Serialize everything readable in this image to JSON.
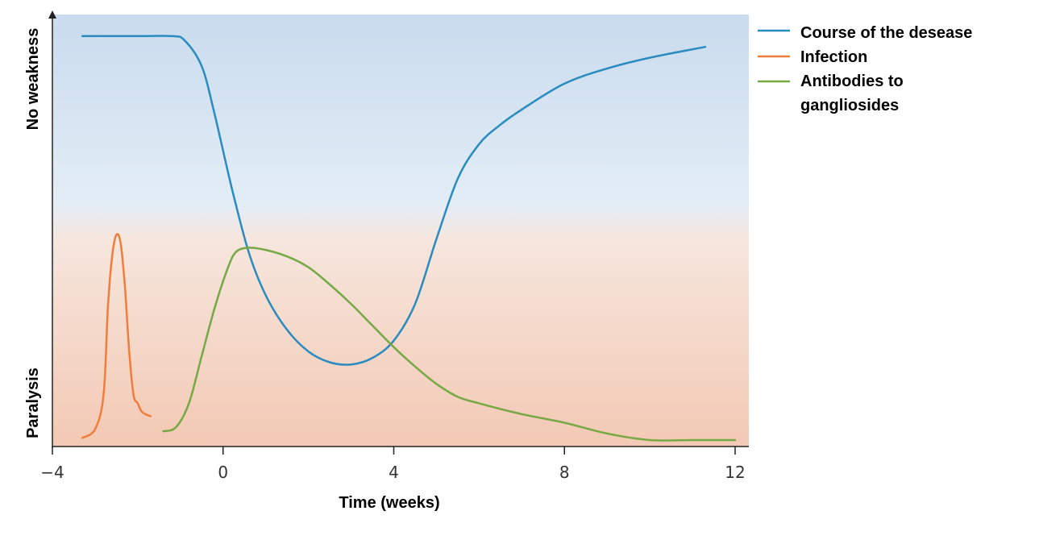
{
  "chart_data": {
    "type": "line",
    "title": "",
    "xlabel": "Time (weeks)",
    "ylabel_top": "No weakness",
    "ylabel_bottom": "Paralysis",
    "xlim": [
      -4,
      12
    ],
    "ylim": [
      0,
      100
    ],
    "x_ticks": [
      -4,
      0,
      4,
      8,
      12
    ],
    "x_tick_labels": [
      "−4",
      "0",
      "4",
      "8",
      "12"
    ],
    "grid": false,
    "legend_position": "top-right",
    "background_gradient": {
      "top": "#c9dbee",
      "middle": "#e3edf6",
      "bottom": "#f3c9b4"
    },
    "series": [
      {
        "name": "Course of the desease",
        "color": "#2a8bbf",
        "x": [
          -3.3,
          -2.0,
          -1.2,
          -0.9,
          -0.5,
          -0.2,
          0.2,
          0.6,
          1.0,
          1.5,
          2.0,
          2.5,
          3.0,
          3.5,
          4.0,
          4.5,
          5.0,
          5.5,
          6.0,
          6.5,
          7.0,
          8.0,
          9.0,
          10.0,
          11.3
        ],
        "y": [
          95,
          95,
          95,
          94,
          88,
          77,
          60,
          45,
          35,
          27,
          22,
          19.5,
          19,
          20.5,
          24.5,
          33,
          48,
          62,
          70,
          74.5,
          78,
          84,
          87.5,
          90,
          92.5
        ]
      },
      {
        "name": "Infection",
        "color": "#f07d3c",
        "x": [
          -3.3,
          -3.0,
          -2.8,
          -2.7,
          -2.6,
          -2.5,
          -2.4,
          -2.3,
          -2.2,
          -2.1,
          -2.0,
          -1.9,
          -1.7
        ],
        "y": [
          2,
          4,
          12,
          32,
          44,
          49,
          47,
          37,
          22,
          12,
          10,
          8,
          7
        ]
      },
      {
        "name": "Antibodies to gangliosides",
        "color": "#76a845",
        "x": [
          -1.4,
          -1.1,
          -0.8,
          -0.5,
          -0.2,
          0.1,
          0.3,
          0.6,
          1.0,
          1.5,
          2.0,
          2.5,
          3.0,
          3.5,
          4.0,
          4.5,
          5.0,
          5.5,
          6.0,
          7.0,
          8.0,
          9.0,
          10.0,
          11.0,
          12.0
        ],
        "y": [
          3.5,
          4.5,
          10,
          21,
          32,
          41,
          45,
          46,
          45.5,
          44,
          41.5,
          37.5,
          33,
          28,
          23,
          18.5,
          14.5,
          11.5,
          10,
          7.5,
          5.5,
          3,
          1.5,
          1.5,
          1.5
        ]
      }
    ]
  }
}
